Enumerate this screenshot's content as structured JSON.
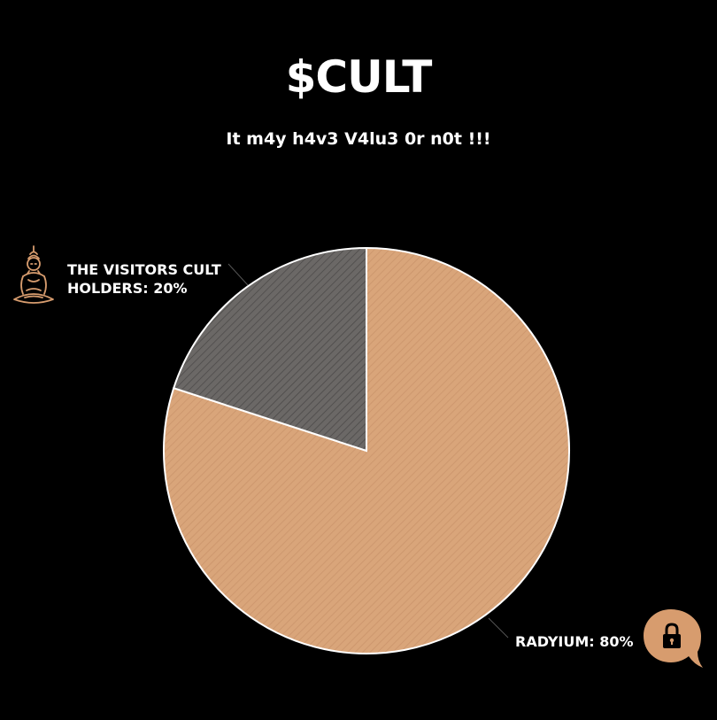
{
  "chart_data": {
    "type": "pie",
    "title": "$CULT",
    "subtitle": "It m4y h4v3 V4lu3 0r n0t !!!",
    "slices": [
      {
        "label": "RADYIUM: 80%",
        "name": "RADYIUM",
        "value": 80,
        "color": "#d9a57a"
      },
      {
        "label": "THE VISITORS CULT HOLDERS: 20%",
        "name": "THE VISITORS CULT HOLDERS",
        "value": 20,
        "color": "#6b6866"
      }
    ],
    "start_angle_deg": 0,
    "direction": "clockwise",
    "pattern": "diagonal-hatch",
    "edge_color": "#ffffff"
  },
  "labels": {
    "visitors_line1": "THE VISITORS CULT",
    "visitors_line2": "HOLDERS: 20%",
    "radyium": "RADYIUM: 80%"
  },
  "icons": {
    "visitors": "buddha-icon",
    "radyium": "lock-bubble-icon",
    "accent": "#d79c6e"
  }
}
